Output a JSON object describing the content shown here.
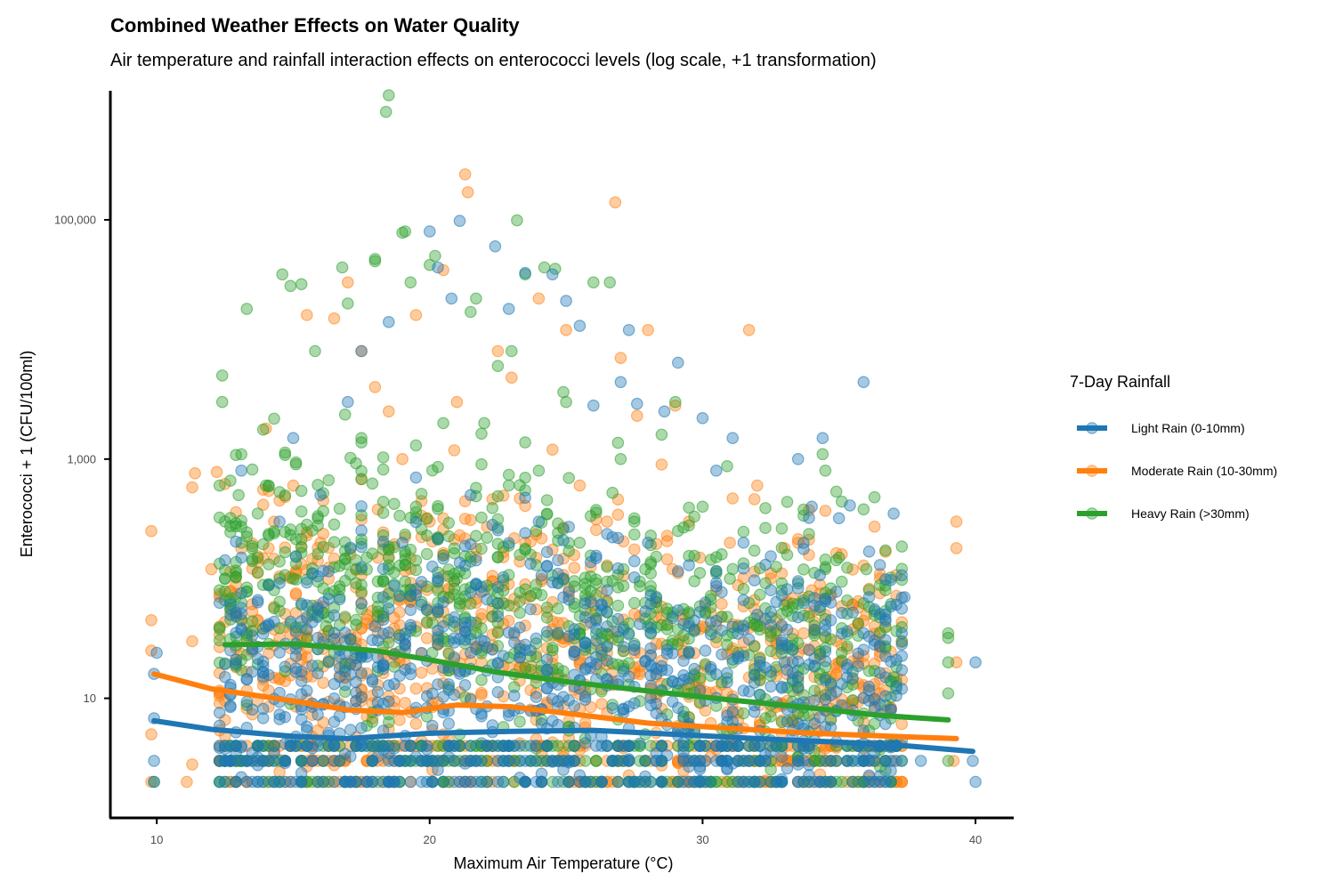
{
  "colors": {
    "light": "#1f77b4",
    "moderate": "#ff7f0e",
    "heavy": "#2ca02c",
    "axis": "#000000",
    "tick_text": "#4d4d4d"
  },
  "chart_data": {
    "type": "scatter",
    "title": "Combined Weather Effects on Water Quality",
    "subtitle": "Air temperature and rainfall interaction effects on enterococci levels (log scale, +1 transformation)",
    "xlabel": "Maximum Air Temperature (°C)",
    "ylabel": "Enterococci + 1 (CFU/100ml)",
    "xlim": [
      8.3,
      41.4
    ],
    "ylim": [
      1,
      1200000
    ],
    "y_scale": "log10",
    "x_ticks": [
      10,
      20,
      30,
      40
    ],
    "x_tick_labels": [
      "10",
      "20",
      "30",
      "40"
    ],
    "y_ticks": [
      10,
      1000,
      100000
    ],
    "y_tick_labels": [
      "10",
      "1,000",
      "100,000"
    ],
    "grid": false,
    "legend": {
      "title": "7-Day Rainfall",
      "placement": "right",
      "entries": [
        "Light Rain (0-10mm)",
        "Moderate Rain (10-30mm)",
        "Heavy Rain (>30mm)"
      ]
    },
    "series": [
      {
        "name": "Light Rain (0-10mm)",
        "color": "#1f77b4",
        "trend": [
          [
            9.9,
            6.5
          ],
          [
            12,
            5.5
          ],
          [
            15,
            4.8
          ],
          [
            17,
            4.6
          ],
          [
            20,
            5.1
          ],
          [
            23,
            5.3
          ],
          [
            26,
            5.4
          ],
          [
            29,
            5.0
          ],
          [
            32,
            4.6
          ],
          [
            35,
            4.3
          ],
          [
            37.5,
            4.0
          ],
          [
            39.9,
            3.6
          ]
        ],
        "points_sample": [
          [
            9.9,
            2.0
          ],
          [
            9.9,
            3.0
          ],
          [
            9.9,
            6.8
          ],
          [
            9.9,
            16
          ],
          [
            10.0,
            24
          ],
          [
            12.3,
            2.0
          ],
          [
            12.3,
            3.0
          ],
          [
            12.3,
            4.0
          ],
          [
            13.1,
            150
          ],
          [
            13.1,
            800
          ],
          [
            13.5,
            2.0
          ],
          [
            14.0,
            40
          ],
          [
            14.5,
            300
          ],
          [
            15.0,
            1500
          ],
          [
            15.5,
            60
          ],
          [
            16.0,
            500
          ],
          [
            16.5,
            2.0
          ],
          [
            17.0,
            3000
          ],
          [
            17.5,
            8000
          ],
          [
            18.0,
            40
          ],
          [
            18.5,
            14000
          ],
          [
            19.0,
            200
          ],
          [
            19.5,
            700
          ],
          [
            20.0,
            80000
          ],
          [
            20.3,
            40000
          ],
          [
            20.8,
            22000
          ],
          [
            21.1,
            98000
          ],
          [
            21.5,
            500
          ],
          [
            22.0,
            30
          ],
          [
            22.4,
            60000
          ],
          [
            22.9,
            18000
          ],
          [
            23.5,
            36000
          ],
          [
            24.0,
            300
          ],
          [
            24.5,
            35000
          ],
          [
            25.0,
            21000
          ],
          [
            25.5,
            13000
          ],
          [
            26.0,
            2800
          ],
          [
            26.5,
            80
          ],
          [
            27.0,
            4400
          ],
          [
            27.3,
            12000
          ],
          [
            27.6,
            2900
          ],
          [
            28.0,
            200
          ],
          [
            28.6,
            2500
          ],
          [
            29.1,
            6400
          ],
          [
            29.5,
            40
          ],
          [
            30.0,
            2200
          ],
          [
            30.5,
            800
          ],
          [
            31.1,
            1500
          ],
          [
            31.5,
            200
          ],
          [
            32.0,
            50
          ],
          [
            32.5,
            80
          ],
          [
            33.0,
            20
          ],
          [
            33.5,
            1000
          ],
          [
            34.0,
            400
          ],
          [
            34.4,
            1500
          ],
          [
            35.0,
            320
          ],
          [
            35.4,
            410
          ],
          [
            35.9,
            4400
          ],
          [
            36.5,
            130
          ],
          [
            37.0,
            350
          ],
          [
            37.4,
            70
          ],
          [
            38.0,
            3.0
          ],
          [
            39.9,
            3.0
          ],
          [
            40.0,
            2.0
          ],
          [
            40.0,
            20
          ]
        ]
      },
      {
        "name": "Moderate Rain (10-30mm)",
        "color": "#ff7f0e",
        "trend": [
          [
            9.9,
            16
          ],
          [
            12,
            12
          ],
          [
            15,
            9.5
          ],
          [
            17,
            8.0
          ],
          [
            19,
            7.6
          ],
          [
            21,
            8.8
          ],
          [
            23,
            8.5
          ],
          [
            25,
            7.5
          ],
          [
            28,
            6.2
          ],
          [
            31,
            5.6
          ],
          [
            34,
            5.1
          ],
          [
            37,
            4.8
          ],
          [
            39.3,
            4.6
          ]
        ],
        "points_sample": [
          [
            9.8,
            2.0
          ],
          [
            9.8,
            5.0
          ],
          [
            9.8,
            25
          ],
          [
            9.8,
            45
          ],
          [
            9.8,
            250
          ],
          [
            11.1,
            2.0
          ],
          [
            11.3,
            2.8
          ],
          [
            11.3,
            30
          ],
          [
            11.3,
            580
          ],
          [
            11.4,
            760
          ],
          [
            12.0,
            120
          ],
          [
            12.2,
            780
          ],
          [
            13.0,
            3.0
          ],
          [
            14.0,
            1800
          ],
          [
            14.5,
            450
          ],
          [
            15.0,
            600
          ],
          [
            15.5,
            16000
          ],
          [
            16.0,
            200
          ],
          [
            16.5,
            15000
          ],
          [
            17.0,
            30000
          ],
          [
            17.5,
            8000
          ],
          [
            18.0,
            4000
          ],
          [
            18.5,
            2500
          ],
          [
            19.0,
            1000
          ],
          [
            19.5,
            16000
          ],
          [
            20.0,
            300
          ],
          [
            20.5,
            38000
          ],
          [
            21.0,
            3000
          ],
          [
            21.3,
            240000
          ],
          [
            21.4,
            170000
          ],
          [
            22.0,
            80
          ],
          [
            22.5,
            8000
          ],
          [
            23.0,
            4800
          ],
          [
            23.5,
            200
          ],
          [
            24.0,
            22000
          ],
          [
            24.5,
            1200
          ],
          [
            25.0,
            12000
          ],
          [
            25.5,
            600
          ],
          [
            26.0,
            60
          ],
          [
            26.5,
            300
          ],
          [
            26.8,
            140000
          ],
          [
            27.0,
            7000
          ],
          [
            27.6,
            2300
          ],
          [
            28.0,
            12000
          ],
          [
            28.5,
            900
          ],
          [
            29.0,
            2800
          ],
          [
            29.5,
            300
          ],
          [
            30.0,
            40
          ],
          [
            31.0,
            200
          ],
          [
            31.7,
            12000
          ],
          [
            32.0,
            600
          ],
          [
            32.5,
            100
          ],
          [
            33.0,
            180
          ],
          [
            33.5,
            200
          ],
          [
            34.0,
            80
          ],
          [
            34.5,
            370
          ],
          [
            35.0,
            20
          ],
          [
            36.0,
            50
          ],
          [
            37.0,
            3.0
          ],
          [
            39.2,
            3.0
          ],
          [
            39.3,
            20
          ],
          [
            39.3,
            180
          ],
          [
            39.3,
            300
          ]
        ]
      },
      {
        "name": "Heavy Rain (>30mm)",
        "color": "#2ca02c",
        "trend": [
          [
            12.5,
            28
          ],
          [
            15,
            28.5
          ],
          [
            18,
            25
          ],
          [
            20,
            21
          ],
          [
            22.5,
            16.5
          ],
          [
            25,
            13.8
          ],
          [
            28,
            11.5
          ],
          [
            31,
            9.7
          ],
          [
            34,
            8.3
          ],
          [
            36.5,
            7.2
          ],
          [
            39,
            6.6
          ]
        ],
        "points_sample": [
          [
            9.9,
            2.0
          ],
          [
            12.3,
            2.0
          ],
          [
            12.3,
            80
          ],
          [
            12.3,
            600
          ],
          [
            12.4,
            3000
          ],
          [
            12.4,
            5000
          ],
          [
            13.0,
            3.0
          ],
          [
            13.0,
            500
          ],
          [
            13.3,
            18000
          ],
          [
            14.0,
            600
          ],
          [
            14.5,
            100
          ],
          [
            14.6,
            35000
          ],
          [
            14.9,
            28000
          ],
          [
            15.0,
            100
          ],
          [
            15.3,
            29000
          ],
          [
            15.8,
            8000
          ],
          [
            16.2,
            40
          ],
          [
            16.8,
            40000
          ],
          [
            17.0,
            20000
          ],
          [
            17.5,
            1500
          ],
          [
            18.0,
            45000
          ],
          [
            18.0,
            47000
          ],
          [
            18.4,
            800000
          ],
          [
            18.5,
            1100000
          ],
          [
            19.0,
            78000
          ],
          [
            19.1,
            80000
          ],
          [
            19.3,
            30000
          ],
          [
            19.5,
            400
          ],
          [
            20.0,
            42000
          ],
          [
            20.2,
            50000
          ],
          [
            20.5,
            2000
          ],
          [
            21.0,
            100
          ],
          [
            21.5,
            17000
          ],
          [
            21.7,
            22000
          ],
          [
            22.0,
            2000
          ],
          [
            22.5,
            6000
          ],
          [
            23.0,
            8000
          ],
          [
            23.2,
            99000
          ],
          [
            23.5,
            35000
          ],
          [
            24.0,
            800
          ],
          [
            24.2,
            40000
          ],
          [
            24.6,
            39000
          ],
          [
            25.0,
            3000
          ],
          [
            25.5,
            200
          ],
          [
            26.0,
            30000
          ],
          [
            26.6,
            30000
          ],
          [
            27.0,
            1000
          ],
          [
            27.5,
            300
          ],
          [
            28.0,
            40
          ],
          [
            28.5,
            1600
          ],
          [
            29.0,
            3000
          ],
          [
            30.0,
            400
          ],
          [
            31.0,
            100
          ],
          [
            32.0,
            40
          ],
          [
            33.0,
            60
          ],
          [
            34.4,
            1100
          ],
          [
            34.5,
            800
          ],
          [
            35.0,
            150
          ],
          [
            35.9,
            380
          ],
          [
            36.0,
            120
          ],
          [
            37.0,
            15
          ],
          [
            39.0,
            3.0
          ],
          [
            39.0,
            35
          ],
          [
            39.0,
            32
          ],
          [
            39.0,
            20
          ],
          [
            39.0,
            11
          ]
        ]
      }
    ]
  }
}
